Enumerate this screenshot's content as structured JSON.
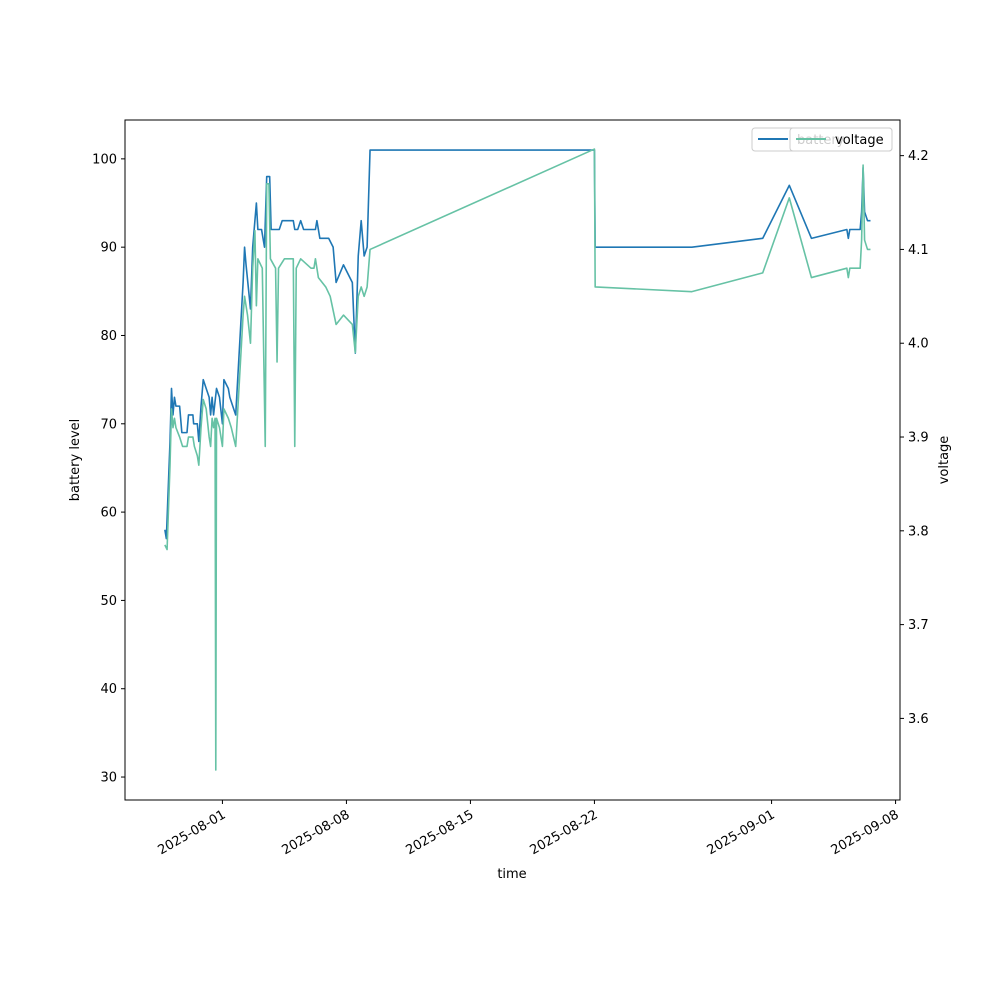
{
  "chart_data": {
    "type": "line",
    "title": "",
    "xlabel": "time",
    "ylabel": "battery level",
    "y2label": "voltage",
    "xlim": [
      "2025-07-26T12:00",
      "2025-09-08T06:00"
    ],
    "ylim": [
      27.4,
      104.4
    ],
    "y2lim": [
      3.513,
      4.238
    ],
    "x_ticks": [
      "2025-08-01",
      "2025-08-08",
      "2025-08-15",
      "2025-08-22",
      "2025-09-01",
      "2025-09-08"
    ],
    "y_ticks": [
      30,
      40,
      50,
      60,
      70,
      80,
      90,
      100
    ],
    "y2_ticks": [
      3.6,
      3.7,
      3.8,
      3.9,
      4.0,
      4.1,
      4.2
    ],
    "y_tick_labels": [
      "30",
      "40",
      "50",
      "60",
      "70",
      "80",
      "90",
      "100"
    ],
    "y2_tick_labels": [
      "3.6",
      "3.7",
      "3.8",
      "3.9",
      "4.0",
      "4.1",
      "4.2"
    ],
    "grid": false,
    "legend": [
      {
        "label": "battery",
        "placement": "upper-right"
      },
      {
        "label": "voltage",
        "placement": "upper-right"
      }
    ],
    "series": [
      {
        "name": "battery",
        "axis": "left",
        "color": "#1f77b4",
        "points": [
          [
            "2025-07-28T18:00",
            58
          ],
          [
            "2025-07-28T20:00",
            57
          ],
          [
            "2025-07-29T01:00",
            68
          ],
          [
            "2025-07-29T03:00",
            74
          ],
          [
            "2025-07-29T05:00",
            71
          ],
          [
            "2025-07-29T07:00",
            73
          ],
          [
            "2025-07-29T09:00",
            72
          ],
          [
            "2025-07-29T14:00",
            72
          ],
          [
            "2025-07-29T17:00",
            69
          ],
          [
            "2025-07-30T00:00",
            69
          ],
          [
            "2025-07-30T02:00",
            71
          ],
          [
            "2025-07-30T08:00",
            71
          ],
          [
            "2025-07-30T09:00",
            70
          ],
          [
            "2025-07-30T14:00",
            70
          ],
          [
            "2025-07-30T16:00",
            68
          ],
          [
            "2025-07-30T19:00",
            72
          ],
          [
            "2025-07-30T22:00",
            75
          ],
          [
            "2025-07-31T02:00",
            74
          ],
          [
            "2025-07-31T06:00",
            73
          ],
          [
            "2025-07-31T08:00",
            71
          ],
          [
            "2025-07-31T10:00",
            73
          ],
          [
            "2025-07-31T12:00",
            71
          ],
          [
            "2025-07-31T16:00",
            74
          ],
          [
            "2025-07-31T20:00",
            73
          ],
          [
            "2025-08-01T00:00",
            70
          ],
          [
            "2025-08-01T02:00",
            75
          ],
          [
            "2025-08-01T08:00",
            74
          ],
          [
            "2025-08-01T10:00",
            73
          ],
          [
            "2025-08-01T14:00",
            72
          ],
          [
            "2025-08-01T18:00",
            71
          ],
          [
            "2025-08-02T04:00",
            86
          ],
          [
            "2025-08-02T06:00",
            90
          ],
          [
            "2025-08-02T08:00",
            88
          ],
          [
            "2025-08-02T14:00",
            83
          ],
          [
            "2025-08-02T17:00",
            90
          ],
          [
            "2025-08-02T22:00",
            95
          ],
          [
            "2025-08-03T00:00",
            92
          ],
          [
            "2025-08-03T05:00",
            92
          ],
          [
            "2025-08-03T09:00",
            90
          ],
          [
            "2025-08-03T12:00",
            98
          ],
          [
            "2025-08-03T16:00",
            98
          ],
          [
            "2025-08-03T18:00",
            92
          ],
          [
            "2025-08-04T05:00",
            92
          ],
          [
            "2025-08-04T09:00",
            93
          ],
          [
            "2025-08-05T00:00",
            93
          ],
          [
            "2025-08-05T02:00",
            92
          ],
          [
            "2025-08-05T06:00",
            92
          ],
          [
            "2025-08-05T10:00",
            93
          ],
          [
            "2025-08-05T14:00",
            92
          ],
          [
            "2025-08-06T06:00",
            92
          ],
          [
            "2025-08-06T08:00",
            93
          ],
          [
            "2025-08-06T12:00",
            91
          ],
          [
            "2025-08-07T00:00",
            91
          ],
          [
            "2025-08-07T06:00",
            90
          ],
          [
            "2025-08-07T10:00",
            86
          ],
          [
            "2025-08-07T20:00",
            88
          ],
          [
            "2025-08-08T08:00",
            86
          ],
          [
            "2025-08-08T12:00",
            78
          ],
          [
            "2025-08-08T16:00",
            89
          ],
          [
            "2025-08-08T20:00",
            93
          ],
          [
            "2025-08-09T00:00",
            89
          ],
          [
            "2025-08-09T04:00",
            90
          ],
          [
            "2025-08-09T08:00",
            101
          ],
          [
            "2025-08-22T00:00",
            101
          ],
          [
            "2025-08-22T01:00",
            90
          ],
          [
            "2025-08-27T12:00",
            90
          ],
          [
            "2025-08-31T12:00",
            91
          ],
          [
            "2025-09-02T00:00",
            97
          ],
          [
            "2025-09-03T06:00",
            91
          ],
          [
            "2025-09-05T06:00",
            92
          ],
          [
            "2025-09-05T08:00",
            91
          ],
          [
            "2025-09-05T10:00",
            92
          ],
          [
            "2025-09-06T00:00",
            92
          ],
          [
            "2025-09-06T02:00",
            94
          ],
          [
            "2025-09-06T04:00",
            99
          ],
          [
            "2025-09-06T06:00",
            94
          ],
          [
            "2025-09-06T10:00",
            93
          ],
          [
            "2025-09-06T14:00",
            93
          ]
        ]
      },
      {
        "name": "voltage",
        "axis": "right",
        "color": "#66c2a5",
        "points": [
          [
            "2025-07-28T18:00",
            3.785
          ],
          [
            "2025-07-28T21:00",
            3.78
          ],
          [
            "2025-07-29T01:00",
            3.87
          ],
          [
            "2025-07-29T03:00",
            3.93
          ],
          [
            "2025-07-29T05:00",
            3.91
          ],
          [
            "2025-07-29T07:00",
            3.92
          ],
          [
            "2025-07-29T09:00",
            3.91
          ],
          [
            "2025-07-29T14:00",
            3.9
          ],
          [
            "2025-07-29T18:00",
            3.89
          ],
          [
            "2025-07-30T00:00",
            3.89
          ],
          [
            "2025-07-30T02:00",
            3.9
          ],
          [
            "2025-07-30T08:00",
            3.9
          ],
          [
            "2025-07-30T10:00",
            3.89
          ],
          [
            "2025-07-30T14:00",
            3.88
          ],
          [
            "2025-07-30T16:00",
            3.87
          ],
          [
            "2025-07-30T19:00",
            3.91
          ],
          [
            "2025-07-30T22:00",
            3.94
          ],
          [
            "2025-07-31T02:00",
            3.93
          ],
          [
            "2025-07-31T06:00",
            3.9
          ],
          [
            "2025-07-31T08:00",
            3.89
          ],
          [
            "2025-07-31T10:00",
            3.92
          ],
          [
            "2025-07-31T12:00",
            3.91
          ],
          [
            "2025-07-31T14:00",
            3.92
          ],
          [
            "2025-07-31T15:00",
            3.545
          ],
          [
            "2025-07-31T16:00",
            3.92
          ],
          [
            "2025-07-31T20:00",
            3.91
          ],
          [
            "2025-08-01T00:00",
            3.89
          ],
          [
            "2025-08-01T02:00",
            3.93
          ],
          [
            "2025-08-01T08:00",
            3.92
          ],
          [
            "2025-08-01T12:00",
            3.91
          ],
          [
            "2025-08-01T18:00",
            3.89
          ],
          [
            "2025-08-02T04:00",
            4.03
          ],
          [
            "2025-08-02T06:00",
            4.05
          ],
          [
            "2025-08-02T10:00",
            4.03
          ],
          [
            "2025-08-02T14:00",
            4.0
          ],
          [
            "2025-08-02T17:00",
            4.08
          ],
          [
            "2025-08-02T20:00",
            4.12
          ],
          [
            "2025-08-02T22:00",
            4.04
          ],
          [
            "2025-08-03T00:00",
            4.09
          ],
          [
            "2025-08-03T06:00",
            4.08
          ],
          [
            "2025-08-03T10:00",
            3.89
          ],
          [
            "2025-08-03T12:00",
            4.17
          ],
          [
            "2025-08-03T15:00",
            4.17
          ],
          [
            "2025-08-03T17:00",
            4.09
          ],
          [
            "2025-08-04T00:00",
            4.08
          ],
          [
            "2025-08-04T02:00",
            3.98
          ],
          [
            "2025-08-04T04:00",
            4.08
          ],
          [
            "2025-08-04T12:00",
            4.09
          ],
          [
            "2025-08-05T00:00",
            4.09
          ],
          [
            "2025-08-05T02:00",
            3.89
          ],
          [
            "2025-08-05T04:00",
            4.08
          ],
          [
            "2025-08-05T10:00",
            4.09
          ],
          [
            "2025-08-06T00:00",
            4.08
          ],
          [
            "2025-08-06T04:00",
            4.08
          ],
          [
            "2025-08-06T06:00",
            4.09
          ],
          [
            "2025-08-06T10:00",
            4.07
          ],
          [
            "2025-08-06T20:00",
            4.06
          ],
          [
            "2025-08-07T02:00",
            4.05
          ],
          [
            "2025-08-07T10:00",
            4.02
          ],
          [
            "2025-08-07T20:00",
            4.03
          ],
          [
            "2025-08-08T08:00",
            4.02
          ],
          [
            "2025-08-08T12:00",
            3.99
          ],
          [
            "2025-08-08T16:00",
            4.05
          ],
          [
            "2025-08-08T20:00",
            4.06
          ],
          [
            "2025-08-09T00:00",
            4.05
          ],
          [
            "2025-08-09T04:00",
            4.06
          ],
          [
            "2025-08-09T08:00",
            4.1
          ],
          [
            "2025-08-22T00:00",
            4.207
          ],
          [
            "2025-08-22T01:00",
            4.06
          ],
          [
            "2025-08-27T12:00",
            4.055
          ],
          [
            "2025-08-31T12:00",
            4.075
          ],
          [
            "2025-09-02T00:00",
            4.155
          ],
          [
            "2025-09-03T06:00",
            4.07
          ],
          [
            "2025-09-05T06:00",
            4.08
          ],
          [
            "2025-09-05T08:00",
            4.07
          ],
          [
            "2025-09-05T10:00",
            4.08
          ],
          [
            "2025-09-06T00:00",
            4.08
          ],
          [
            "2025-09-06T02:00",
            4.11
          ],
          [
            "2025-09-06T04:00",
            4.19
          ],
          [
            "2025-09-06T06:00",
            4.11
          ],
          [
            "2025-09-06T10:00",
            4.1
          ],
          [
            "2025-09-06T14:00",
            4.1
          ]
        ]
      }
    ]
  }
}
